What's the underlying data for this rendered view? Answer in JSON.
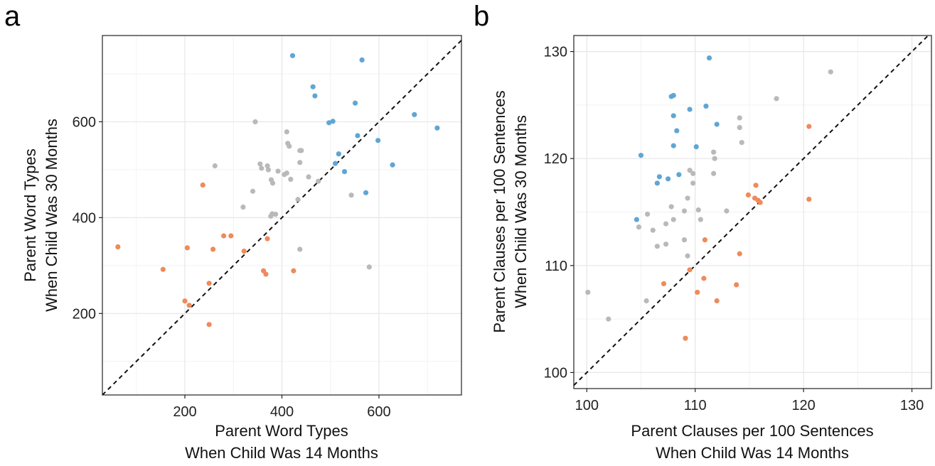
{
  "colors": {
    "blue": "#5fa6d4",
    "gray": "#b9b9b9",
    "orange": "#ef8a5b"
  },
  "chart_data": [
    {
      "panel": "a",
      "type": "scatter",
      "xlabel": [
        "Parent Word Types",
        "When Child Was 14 Months"
      ],
      "ylabel": [
        "Parent Word Types",
        "When Child Was 30 Months"
      ],
      "xlim": [
        30,
        770
      ],
      "ylim": [
        30,
        780
      ],
      "xticks": [
        200,
        400,
        600
      ],
      "yticks": [
        200,
        400,
        600
      ],
      "reference_line": "y = x (dashed)",
      "grid": true,
      "series": [
        {
          "color_key": "blue",
          "points": [
            [
              422,
              738
            ],
            [
              565,
              729
            ],
            [
              464,
              673
            ],
            [
              468,
              654
            ],
            [
              551,
              639
            ],
            [
              673,
              615
            ],
            [
              720,
              587
            ],
            [
              505,
              601
            ],
            [
              497,
              598
            ],
            [
              556,
              571
            ],
            [
              598,
              561
            ],
            [
              517,
              533
            ],
            [
              628,
              510
            ],
            [
              510,
              513
            ],
            [
              529,
              496
            ],
            [
              573,
              452
            ]
          ]
        },
        {
          "color_key": "gray",
          "points": [
            [
              345,
              600
            ],
            [
              410,
              579
            ],
            [
              412,
              555
            ],
            [
              415,
              549
            ],
            [
              437,
              540
            ],
            [
              440,
              540
            ],
            [
              262,
              508
            ],
            [
              355,
              512
            ],
            [
              358,
              503
            ],
            [
              370,
              508
            ],
            [
              372,
              500
            ],
            [
              437,
              515
            ],
            [
              392,
              497
            ],
            [
              410,
              493
            ],
            [
              405,
              490
            ],
            [
              455,
              485
            ],
            [
              475,
              476
            ],
            [
              378,
              479
            ],
            [
              381,
              472
            ],
            [
              418,
              480
            ],
            [
              340,
              455
            ],
            [
              433,
              438
            ],
            [
              543,
              447
            ],
            [
              320,
              422
            ],
            [
              380,
              408
            ],
            [
              387,
              407
            ],
            [
              377,
              403
            ],
            [
              437,
              334
            ],
            [
              580,
              297
            ]
          ]
        },
        {
          "color_key": "orange",
          "points": [
            [
              237,
              468
            ],
            [
              62,
              339
            ],
            [
              205,
              337
            ],
            [
              258,
              334
            ],
            [
              280,
              362
            ],
            [
              295,
              362
            ],
            [
              322,
              330
            ],
            [
              370,
              356
            ],
            [
              155,
              292
            ],
            [
              362,
              289
            ],
            [
              367,
              282
            ],
            [
              424,
              289
            ],
            [
              250,
              263
            ],
            [
              200,
              226
            ],
            [
              209,
              217
            ],
            [
              250,
              177
            ]
          ]
        }
      ]
    },
    {
      "panel": "b",
      "type": "scatter",
      "xlabel": [
        "Parent Clauses per 100 Sentences",
        "When Child Was 14 Months"
      ],
      "ylabel": [
        "Parent Clauses per 100 Sentences",
        "When Child Was 30 Months"
      ],
      "xlim": [
        98.8,
        131.8
      ],
      "ylim": [
        98.5,
        131.5
      ],
      "xticks": [
        100,
        110,
        120,
        130
      ],
      "yticks": [
        100,
        110,
        120,
        130
      ],
      "reference_line": "y = x (dashed)",
      "grid": true,
      "series": [
        {
          "color_key": "blue",
          "points": [
            [
              111.3,
              129.4
            ],
            [
              107.8,
              125.8
            ],
            [
              108.0,
              125.9
            ],
            [
              111.0,
              124.9
            ],
            [
              109.5,
              124.6
            ],
            [
              108.0,
              124.0
            ],
            [
              108.3,
              122.6
            ],
            [
              112.0,
              123.2
            ],
            [
              108.0,
              121.2
            ],
            [
              110.1,
              121.1
            ],
            [
              105.0,
              120.3
            ],
            [
              106.7,
              118.3
            ],
            [
              107.5,
              118.1
            ],
            [
              108.5,
              118.5
            ],
            [
              106.5,
              117.7
            ],
            [
              104.6,
              114.3
            ]
          ]
        },
        {
          "color_key": "gray",
          "points": [
            [
              122.5,
              128.1
            ],
            [
              117.5,
              125.6
            ],
            [
              114.1,
              123.8
            ],
            [
              114.1,
              122.9
            ],
            [
              114.3,
              121.5
            ],
            [
              111.7,
              120.6
            ],
            [
              111.8,
              120.0
            ],
            [
              109.5,
              118.9
            ],
            [
              109.8,
              118.6
            ],
            [
              111.7,
              118.6
            ],
            [
              109.8,
              117.7
            ],
            [
              109.3,
              116.3
            ],
            [
              107.8,
              115.5
            ],
            [
              110.3,
              115.2
            ],
            [
              109.0,
              115.1
            ],
            [
              112.9,
              115.1
            ],
            [
              105.6,
              114.8
            ],
            [
              108.0,
              114.3
            ],
            [
              110.5,
              114.3
            ],
            [
              107.3,
              113.9
            ],
            [
              106.1,
              113.3
            ],
            [
              104.8,
              113.6
            ],
            [
              109.0,
              112.4
            ],
            [
              106.5,
              111.8
            ],
            [
              107.3,
              112.0
            ],
            [
              109.3,
              110.9
            ],
            [
              100.1,
              107.5
            ],
            [
              105.5,
              106.7
            ],
            [
              102.0,
              105.0
            ]
          ]
        },
        {
          "color_key": "orange",
          "points": [
            [
              120.5,
              123.0
            ],
            [
              115.6,
              117.5
            ],
            [
              114.9,
              116.6
            ],
            [
              115.5,
              116.3
            ],
            [
              115.8,
              116.1
            ],
            [
              116.0,
              115.9
            ],
            [
              120.5,
              116.2
            ],
            [
              110.9,
              112.4
            ],
            [
              114.1,
              111.1
            ],
            [
              109.5,
              109.6
            ],
            [
              110.8,
              108.8
            ],
            [
              107.1,
              108.3
            ],
            [
              113.8,
              108.2
            ],
            [
              110.2,
              107.5
            ],
            [
              112.0,
              106.7
            ],
            [
              109.1,
              103.2
            ]
          ]
        }
      ]
    }
  ]
}
